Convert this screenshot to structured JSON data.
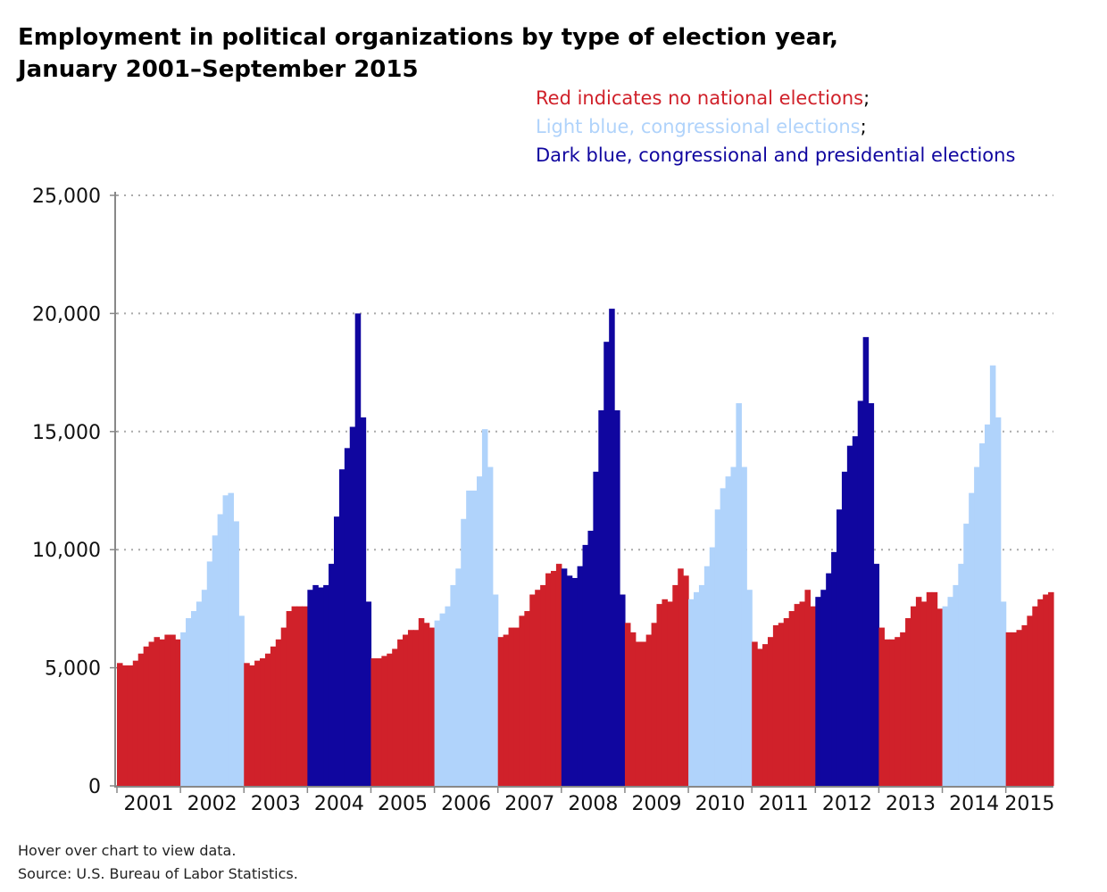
{
  "chart_data": {
    "type": "bar",
    "title": "Employment in political organizations by type of election year, January 2001–September 2015",
    "title_lines": [
      "Employment in political organizations by type of election year,",
      "January 2001–September 2015"
    ],
    "legend": [
      {
        "text": "Red indicates no national elections",
        "suffix": ";",
        "type": "none",
        "color": "#d0212a"
      },
      {
        "text": "Light blue, congressional elections",
        "suffix": ";",
        "type": "congressional",
        "color": "#b0d3fb"
      },
      {
        "text": "Dark blue, congressional and presidential elections",
        "suffix": "",
        "type": "presidential",
        "color": "#10069f"
      }
    ],
    "legend_placement": "top-right",
    "ylim": [
      0,
      25000
    ],
    "yticks": [
      0,
      5000,
      10000,
      15000,
      20000,
      25000
    ],
    "ytick_labels": [
      "0",
      "5,000",
      "10,000",
      "15,000",
      "20,000",
      "25,000"
    ],
    "grid": "horizontal dotted",
    "xlabel": "",
    "ylabel": "",
    "years": [
      {
        "year": "2001",
        "type": "none",
        "values": [
          5200,
          5100,
          5100,
          5300,
          5600,
          5900,
          6100,
          6300,
          6200,
          6400,
          6400,
          6200
        ]
      },
      {
        "year": "2002",
        "type": "congressional",
        "values": [
          6500,
          7100,
          7400,
          7800,
          8300,
          9500,
          10600,
          11500,
          12300,
          12400,
          11200,
          7200
        ]
      },
      {
        "year": "2003",
        "type": "none",
        "values": [
          5200,
          5100,
          5300,
          5400,
          5600,
          5900,
          6200,
          6700,
          7400,
          7600,
          7600,
          7600
        ]
      },
      {
        "year": "2004",
        "type": "presidential",
        "values": [
          8300,
          8500,
          8400,
          8500,
          9400,
          11400,
          13400,
          14300,
          15200,
          20000,
          15600,
          7800
        ]
      },
      {
        "year": "2005",
        "type": "none",
        "values": [
          5400,
          5400,
          5500,
          5600,
          5800,
          6200,
          6400,
          6600,
          6600,
          7100,
          6900,
          6700
        ]
      },
      {
        "year": "2006",
        "type": "congressional",
        "values": [
          7000,
          7300,
          7600,
          8500,
          9200,
          11300,
          12500,
          12500,
          13100,
          15100,
          13500,
          8100
        ]
      },
      {
        "year": "2007",
        "type": "none",
        "values": [
          6300,
          6400,
          6700,
          6700,
          7200,
          7400,
          8100,
          8300,
          8500,
          9000,
          9100,
          9400
        ]
      },
      {
        "year": "2008",
        "type": "presidential",
        "values": [
          9200,
          8900,
          8800,
          9300,
          10200,
          10800,
          13300,
          15900,
          18800,
          20200,
          15900,
          8100
        ]
      },
      {
        "year": "2009",
        "type": "none",
        "values": [
          6900,
          6500,
          6100,
          6100,
          6400,
          6900,
          7700,
          7900,
          7800,
          8500,
          9200,
          8900
        ]
      },
      {
        "year": "2010",
        "type": "congressional",
        "values": [
          7900,
          8200,
          8500,
          9300,
          10100,
          11700,
          12600,
          13100,
          13500,
          16200,
          13500,
          8300
        ]
      },
      {
        "year": "2011",
        "type": "none",
        "values": [
          6100,
          5800,
          6000,
          6300,
          6800,
          6900,
          7100,
          7400,
          7700,
          7800,
          8300,
          7600
        ]
      },
      {
        "year": "2012",
        "type": "presidential",
        "values": [
          8000,
          8300,
          9000,
          9900,
          11700,
          13300,
          14400,
          14800,
          16300,
          19000,
          16200,
          9400
        ]
      },
      {
        "year": "2013",
        "type": "none",
        "values": [
          6700,
          6200,
          6200,
          6300,
          6500,
          7100,
          7600,
          8000,
          7800,
          8200,
          8200,
          7500
        ]
      },
      {
        "year": "2014",
        "type": "congressional",
        "values": [
          7600,
          8000,
          8500,
          9400,
          11100,
          12400,
          13500,
          14500,
          15300,
          17800,
          15600,
          7800
        ]
      },
      {
        "year": "2015",
        "type": "none",
        "values": [
          6500,
          6500,
          6600,
          6800,
          7200,
          7600,
          7900,
          8100,
          8200
        ]
      }
    ]
  },
  "notes": {
    "hover": "Hover over chart to view data.",
    "source": "Source: U.S. Bureau of Labor Statistics."
  }
}
